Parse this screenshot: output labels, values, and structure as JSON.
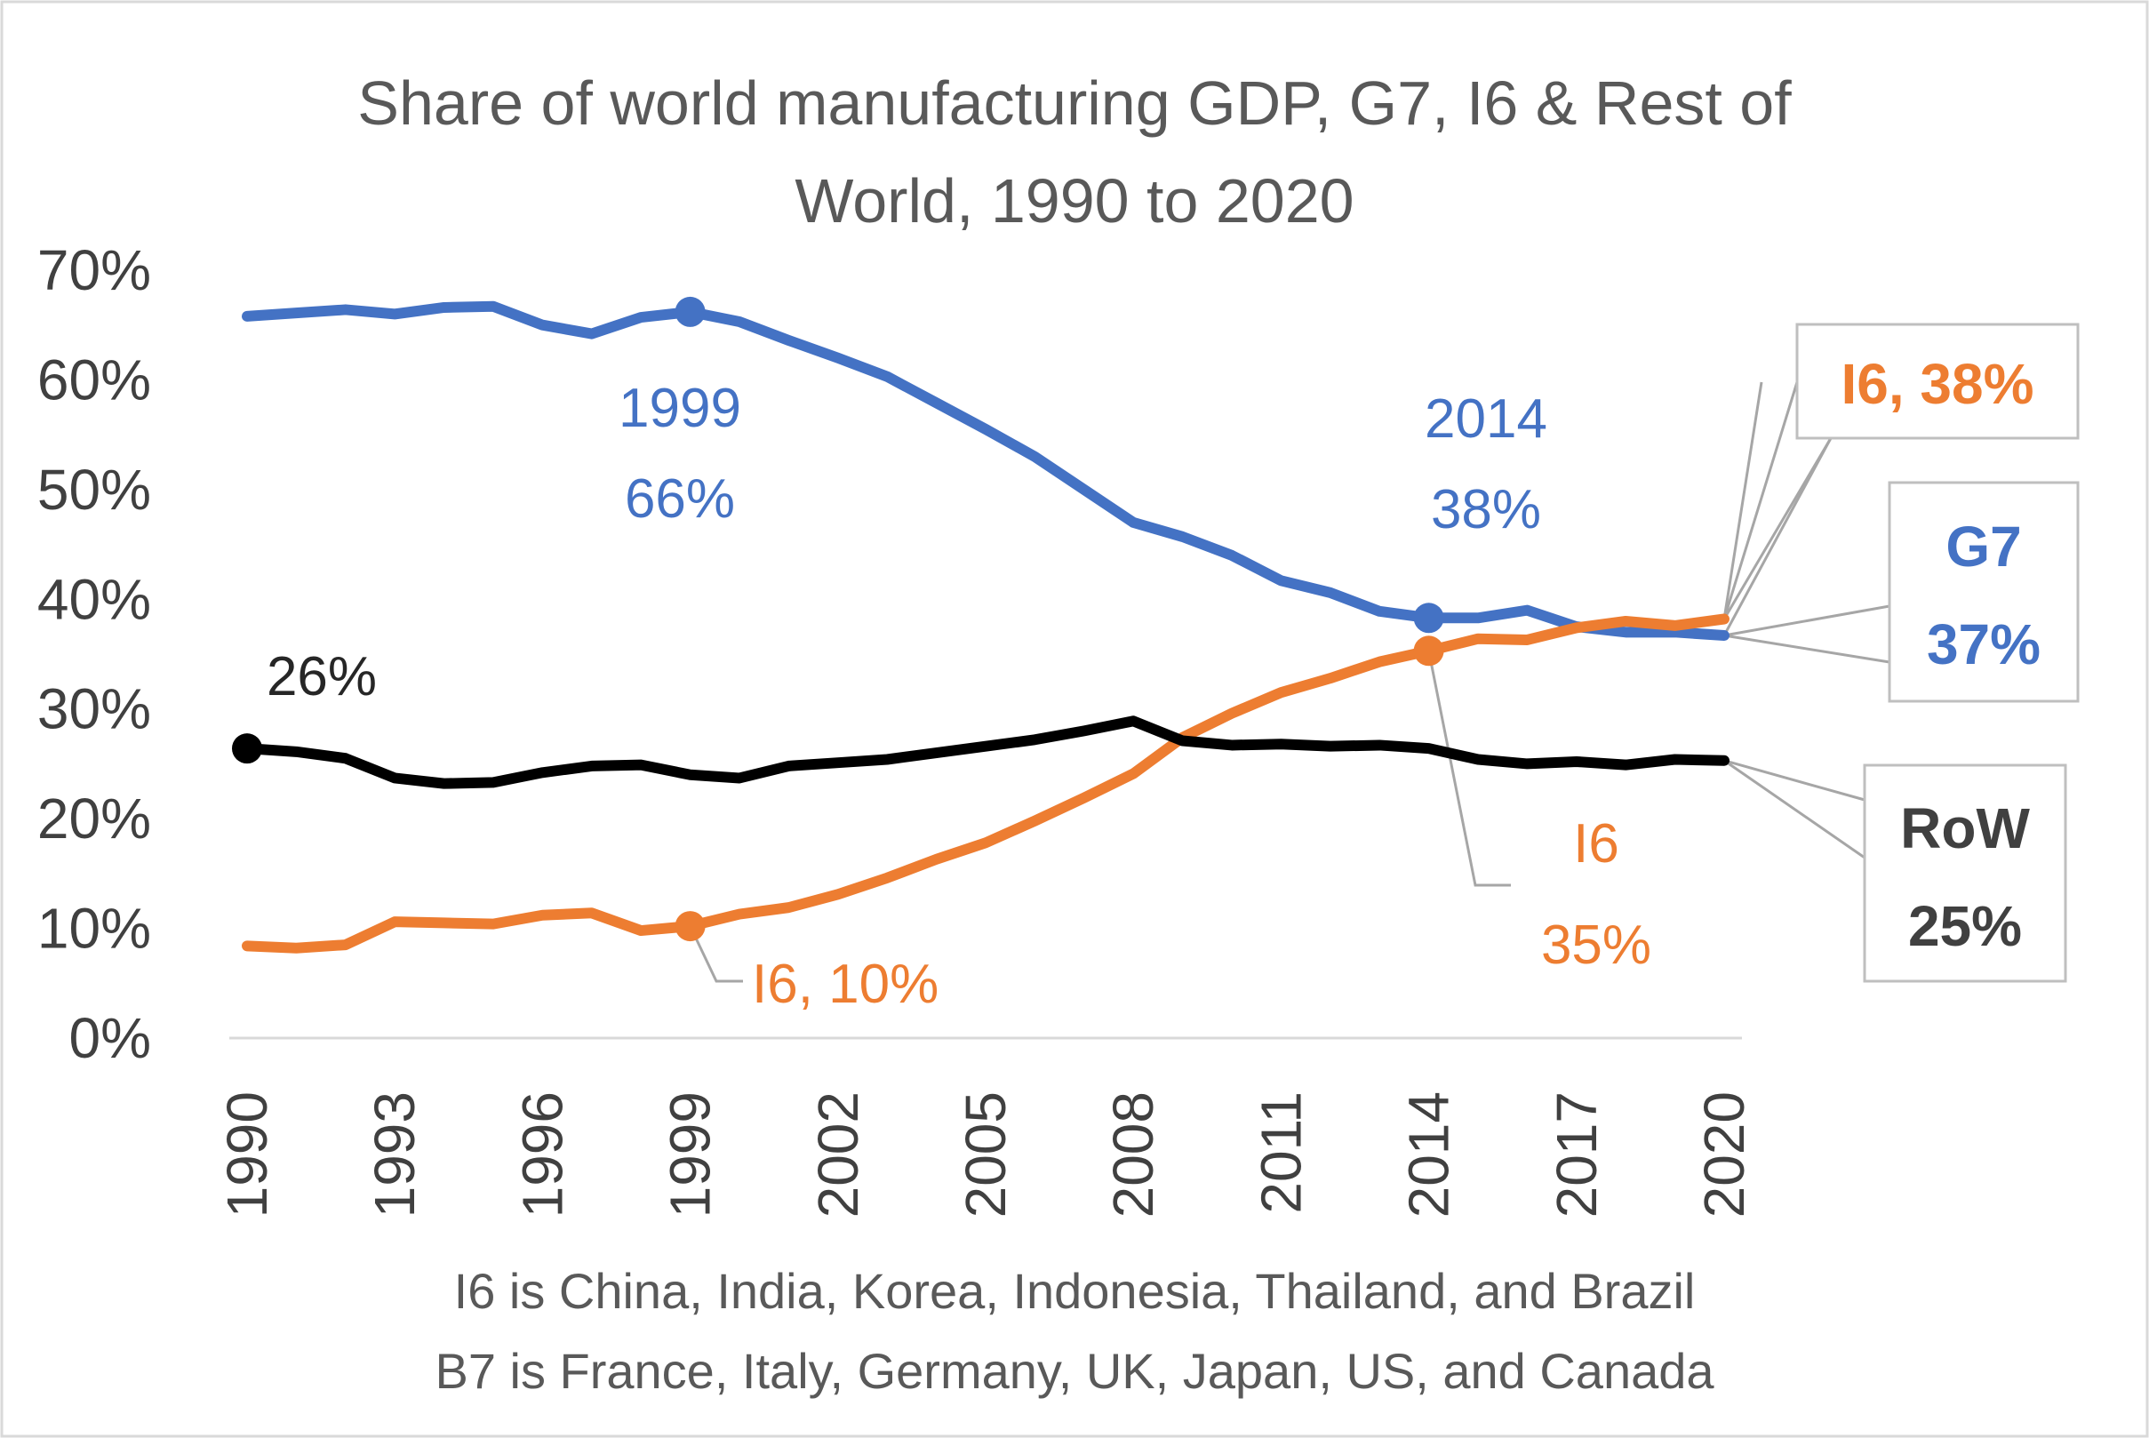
{
  "chart_data": {
    "type": "line",
    "title_lines": [
      "Share of world manufacturing GDP, G7, I6 & Rest of",
      "World, 1990 to 2020"
    ],
    "x": [
      1990,
      1991,
      1992,
      1993,
      1994,
      1995,
      1996,
      1997,
      1998,
      1999,
      2000,
      2001,
      2002,
      2003,
      2004,
      2005,
      2006,
      2007,
      2008,
      2009,
      2010,
      2011,
      2012,
      2013,
      2014,
      2015,
      2016,
      2017,
      2018,
      2019,
      2020
    ],
    "x_tick_labels": [
      "1990",
      "1993",
      "1996",
      "1999",
      "2002",
      "2005",
      "2008",
      "2011",
      "2014",
      "2017",
      "2020"
    ],
    "ylim": [
      0,
      70
    ],
    "y_tick_labels": [
      "0%",
      "10%",
      "20%",
      "30%",
      "40%",
      "50%",
      "60%",
      "70%"
    ],
    "series": [
      {
        "key": "g7",
        "color": "#4472C4",
        "values": [
          65.8,
          66.1,
          66.4,
          66.0,
          66.6,
          66.7,
          65.0,
          64.2,
          65.7,
          66.2,
          65.3,
          63.6,
          62.0,
          60.3,
          57.9,
          55.5,
          53.0,
          50.0,
          47.0,
          45.7,
          44.0,
          41.7,
          40.6,
          38.9,
          38.3,
          38.3,
          39.0,
          37.5,
          37.0,
          37.0,
          36.7
        ]
      },
      {
        "key": "i6",
        "color": "#ED7D31",
        "values": [
          8.4,
          8.2,
          8.5,
          10.6,
          10.5,
          10.4,
          11.2,
          11.4,
          9.8,
          10.2,
          11.3,
          11.9,
          13.1,
          14.6,
          16.3,
          17.8,
          19.8,
          21.9,
          24.1,
          27.4,
          29.6,
          31.5,
          32.8,
          34.3,
          35.3,
          36.4,
          36.3,
          37.4,
          38.0,
          37.6,
          38.2
        ]
      },
      {
        "key": "row",
        "color": "#000000",
        "values": [
          26.4,
          26.1,
          25.5,
          23.7,
          23.2,
          23.3,
          24.2,
          24.8,
          24.9,
          24.0,
          23.7,
          24.8,
          25.1,
          25.4,
          26.0,
          26.6,
          27.2,
          28.0,
          28.9,
          27.1,
          26.7,
          26.8,
          26.6,
          26.7,
          26.4,
          25.4,
          25.0,
          25.2,
          24.9,
          25.4,
          25.3
        ]
      }
    ],
    "annotations": {
      "g7_1999_year": "1999",
      "g7_1999_value": "66%",
      "g7_2014_year": "2014",
      "g7_2014_value": "38%",
      "row_1990": "26%",
      "i6_1999": "I6, 10%",
      "i6_2014_label": "I6",
      "i6_2014_value": "35%",
      "i6_end": "I6, 38%",
      "g7_end_name": "G7",
      "g7_end_value": "37%",
      "row_end_name": "RoW",
      "row_end_value": "25%"
    },
    "notes": [
      "I6 is China, India, Korea, Indonesia, Thailand, and Brazil",
      "B7 is France, Italy, Germany, UK, Japan, US, and Canada"
    ]
  }
}
